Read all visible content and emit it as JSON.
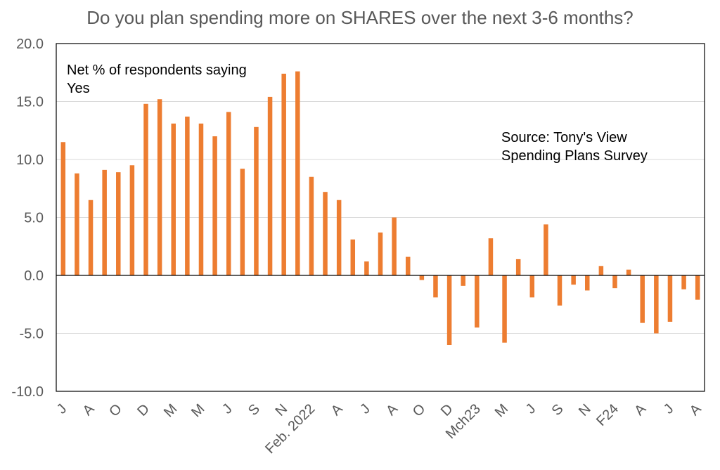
{
  "chart_data": {
    "type": "bar",
    "title": "Do you plan spending more on SHARES over the next 3-6 months?",
    "xlabel": "",
    "ylabel": "",
    "ylim": [
      -10,
      20
    ],
    "yticks": [
      "20.0",
      "15.0",
      "10.0",
      "5.0",
      "0.0",
      "-5.0",
      "-10.0"
    ],
    "ytick_values": [
      20,
      15,
      10,
      5,
      0,
      -5,
      -10
    ],
    "grid": true,
    "bar_color": "#ED7D31",
    "gridline_color": "#D9D9D9",
    "values": [
      11.5,
      8.8,
      6.5,
      9.1,
      8.9,
      9.5,
      14.8,
      15.2,
      13.1,
      13.7,
      13.1,
      12.0,
      14.1,
      9.2,
      12.8,
      15.4,
      17.4,
      17.6,
      8.5,
      7.2,
      6.5,
      3.1,
      1.2,
      3.7,
      5.0,
      1.6,
      -0.4,
      -1.9,
      -6.0,
      -0.9,
      -4.5,
      3.2,
      -5.8,
      1.4,
      -1.9,
      4.4,
      -2.6,
      -0.8,
      -1.3,
      0.8,
      -1.1,
      0.5,
      -4.1,
      -5.0,
      -4.0,
      -1.2,
      -2.1
    ],
    "x_tick_labels": [
      {
        "index": 0,
        "label": "J"
      },
      {
        "index": 2,
        "label": "A"
      },
      {
        "index": 4,
        "label": "O"
      },
      {
        "index": 6,
        "label": "D"
      },
      {
        "index": 8,
        "label": "M"
      },
      {
        "index": 10,
        "label": "M"
      },
      {
        "index": 12,
        "label": "J"
      },
      {
        "index": 14,
        "label": "S"
      },
      {
        "index": 16,
        "label": "N"
      },
      {
        "index": 18,
        "label": "Feb. 2022"
      },
      {
        "index": 20,
        "label": "A"
      },
      {
        "index": 22,
        "label": "J"
      },
      {
        "index": 24,
        "label": "A"
      },
      {
        "index": 26,
        "label": "O"
      },
      {
        "index": 28,
        "label": "D"
      },
      {
        "index": 30,
        "label": "Mch23"
      },
      {
        "index": 32,
        "label": "M"
      },
      {
        "index": 34,
        "label": "J"
      },
      {
        "index": 36,
        "label": "S"
      },
      {
        "index": 38,
        "label": "N"
      },
      {
        "index": 40,
        "label": "F24"
      },
      {
        "index": 42,
        "label": "A"
      },
      {
        "index": 44,
        "label": "J"
      },
      {
        "index": 46,
        "label": "A"
      }
    ],
    "annotations": {
      "legend_line1": "Net % of respondents saying",
      "legend_line2": "Yes",
      "source_line1": "Source: Tony's View",
      "source_line2": "Spending Plans Survey"
    }
  }
}
